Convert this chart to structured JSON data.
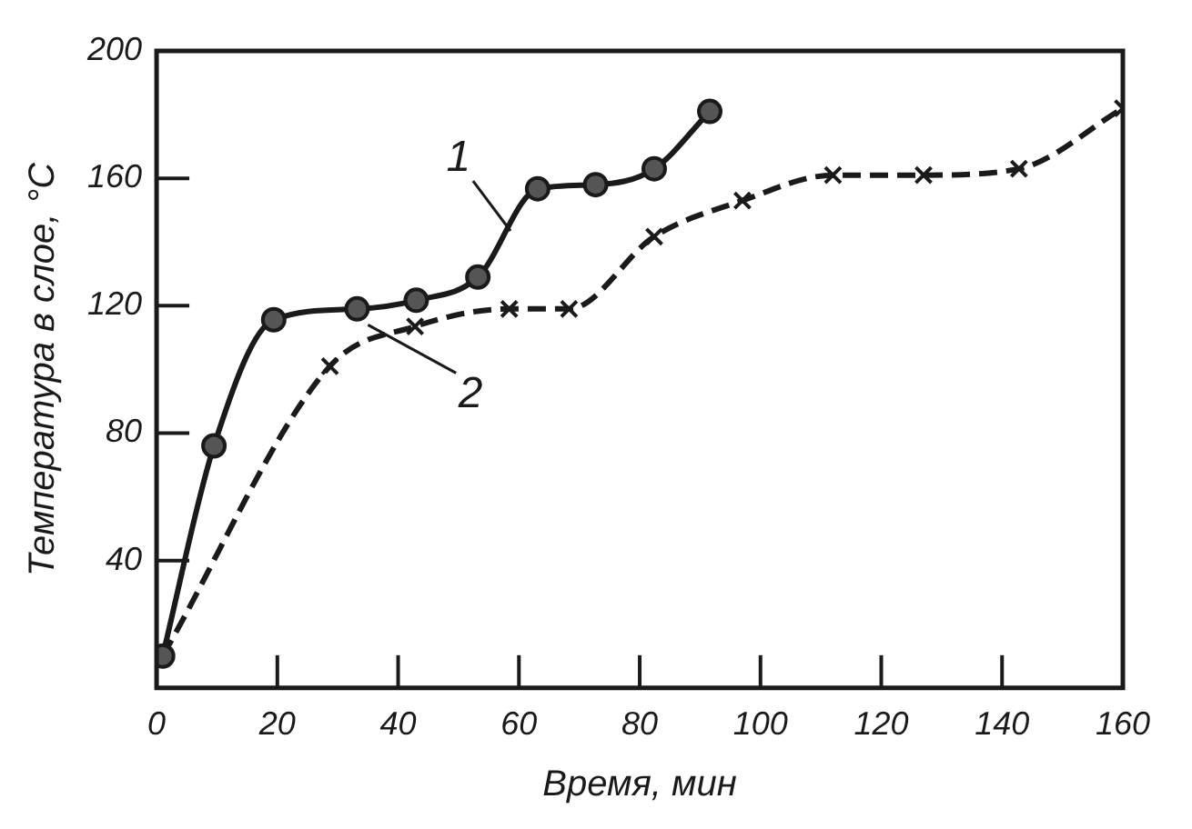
{
  "chart_data": {
    "type": "line",
    "xlabel": "Время, мин",
    "ylabel": "Температура в слое, °С",
    "xlim": [
      0,
      160
    ],
    "xticks": [
      0,
      20,
      40,
      60,
      80,
      100,
      120,
      140,
      160
    ],
    "ylim": [
      0,
      200
    ],
    "yticks": [
      40,
      80,
      120,
      160,
      200
    ],
    "grid": false,
    "legend": false,
    "series": [
      {
        "name": "1",
        "color": "#1a1a1a",
        "marker": "circle",
        "line_style": "solid",
        "x": [
          1,
          9.5,
          19.4,
          33.2,
          43,
          53.2,
          63.1,
          72.7,
          82.4,
          91.6
        ],
        "values": [
          10,
          76,
          115.6,
          119,
          121.7,
          129,
          156.7,
          158,
          163,
          181
        ]
      },
      {
        "name": "2",
        "color": "#1a1a1a",
        "marker": "cross",
        "line_style": "dashed",
        "x": [
          1,
          28.7,
          42.8,
          58.4,
          68.3,
          82.4,
          97,
          112,
          127,
          142.8,
          160
        ],
        "values": [
          10,
          101,
          113.5,
          119,
          119,
          141.7,
          153,
          161,
          161,
          163,
          182
        ]
      }
    ]
  }
}
